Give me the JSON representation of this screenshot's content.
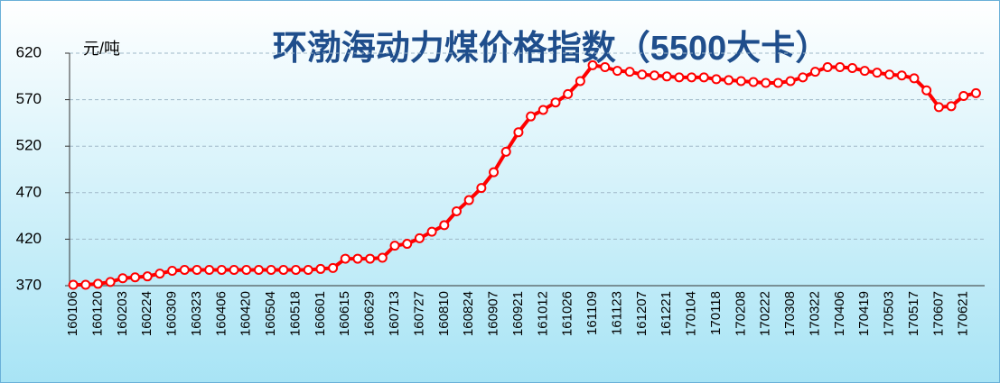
{
  "chart_data": {
    "type": "line",
    "title": "环渤海动力煤价格指数（5500大卡）",
    "ylabel": "元/吨",
    "categories": [
      "160106",
      null,
      "160120",
      null,
      "160203",
      null,
      "160224",
      null,
      "160309",
      null,
      "160323",
      null,
      "160406",
      null,
      "160420",
      null,
      "160504",
      null,
      "160518",
      null,
      "160601",
      null,
      "160615",
      null,
      "160629",
      null,
      "160713",
      null,
      "160727",
      null,
      "160810",
      null,
      "160824",
      null,
      "160907",
      null,
      "160921",
      null,
      "161012",
      null,
      "161026",
      null,
      "161109",
      null,
      "161123",
      null,
      "161207",
      null,
      "161221",
      null,
      "170104",
      null,
      "170118",
      null,
      "170208",
      null,
      "170222",
      null,
      "170308",
      null,
      "170322",
      null,
      "170406",
      null,
      "170419",
      null,
      "170503",
      null,
      "170517",
      null,
      "170607",
      null,
      "170621",
      null
    ],
    "values": [
      371,
      371,
      372,
      374,
      378,
      379,
      380,
      383,
      386,
      387,
      387,
      387,
      387,
      387,
      387,
      387,
      387,
      387,
      387,
      387,
      388,
      389,
      399,
      399,
      399,
      400,
      413,
      415,
      421,
      428,
      435,
      450,
      462,
      475,
      492,
      514,
      535,
      552,
      559,
      567,
      576,
      590,
      607,
      605,
      601,
      600,
      597,
      596,
      595,
      594,
      594,
      594,
      592,
      591,
      590,
      589,
      588,
      588,
      590,
      594,
      600,
      605,
      605,
      604,
      601,
      599,
      597,
      596,
      593,
      580,
      562,
      563,
      574,
      577
    ],
    "color": "#ff0000",
    "ylim": [
      370,
      620
    ],
    "yticks": [
      370,
      420,
      470,
      520,
      570,
      620
    ],
    "grid": true
  }
}
